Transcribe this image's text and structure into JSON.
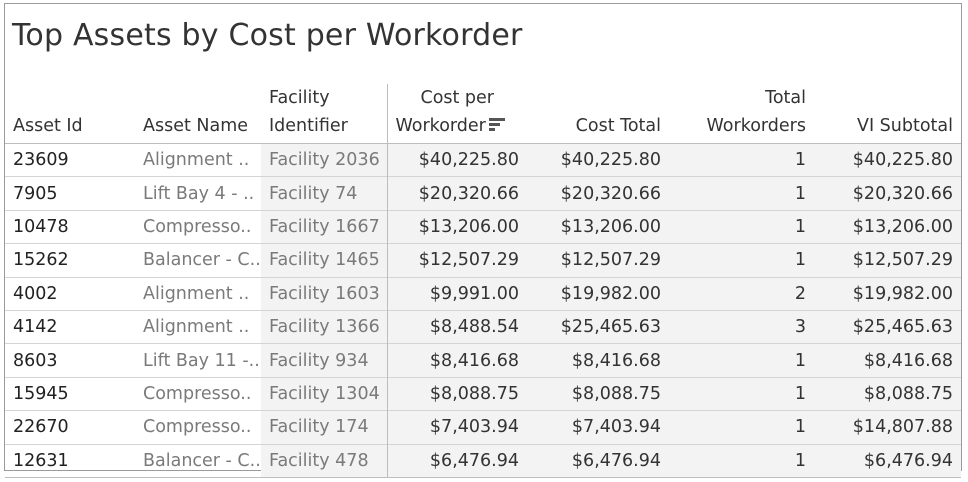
{
  "title": "Top Assets by Cost per Workorder",
  "chart_data": {
    "type": "table",
    "title": "Top Assets by Cost per Workorder",
    "columns": [
      {
        "key": "asset_id",
        "label_lines": [
          "",
          "Asset Id"
        ]
      },
      {
        "key": "asset_name",
        "label_lines": [
          "",
          "Asset Name"
        ]
      },
      {
        "key": "facility",
        "label_lines": [
          "Facility",
          "Identifier"
        ]
      },
      {
        "key": "cost_per_wo",
        "label_lines": [
          "Cost per",
          "Workorder"
        ]
      },
      {
        "key": "cost_total",
        "label_lines": [
          "",
          "Cost Total"
        ]
      },
      {
        "key": "total_wo",
        "label_lines": [
          "Total",
          "Workorders"
        ]
      },
      {
        "key": "vi_subtotal",
        "label_lines": [
          "",
          "VI Subtotal"
        ]
      }
    ],
    "sort": {
      "column": "cost_per_wo",
      "direction": "descending",
      "icon": "sort-descending-icon"
    },
    "rows": [
      {
        "asset_id": "23609",
        "asset_name": "Alignment ..",
        "facility": "Facility 2036",
        "cost_per_wo": "$40,225.80",
        "cost_total": "$40,225.80",
        "total_wo": "1",
        "vi_subtotal": "$40,225.80"
      },
      {
        "asset_id": "7905",
        "asset_name": "Lift Bay 4 - ..",
        "facility": "Facility 74",
        "cost_per_wo": "$20,320.66",
        "cost_total": "$20,320.66",
        "total_wo": "1",
        "vi_subtotal": "$20,320.66"
      },
      {
        "asset_id": "10478",
        "asset_name": "Compresso..",
        "facility": "Facility 1667",
        "cost_per_wo": "$13,206.00",
        "cost_total": "$13,206.00",
        "total_wo": "1",
        "vi_subtotal": "$13,206.00"
      },
      {
        "asset_id": "15262",
        "asset_name": "Balancer - C..",
        "facility": "Facility 1465",
        "cost_per_wo": "$12,507.29",
        "cost_total": "$12,507.29",
        "total_wo": "1",
        "vi_subtotal": "$12,507.29"
      },
      {
        "asset_id": "4002",
        "asset_name": "Alignment ..",
        "facility": "Facility 1603",
        "cost_per_wo": "$9,991.00",
        "cost_total": "$19,982.00",
        "total_wo": "2",
        "vi_subtotal": "$19,982.00"
      },
      {
        "asset_id": "4142",
        "asset_name": "Alignment ..",
        "facility": "Facility 1366",
        "cost_per_wo": "$8,488.54",
        "cost_total": "$25,465.63",
        "total_wo": "3",
        "vi_subtotal": "$25,465.63"
      },
      {
        "asset_id": "8603",
        "asset_name": "Lift Bay 11 -..",
        "facility": "Facility 934",
        "cost_per_wo": "$8,416.68",
        "cost_total": "$8,416.68",
        "total_wo": "1",
        "vi_subtotal": "$8,416.68"
      },
      {
        "asset_id": "15945",
        "asset_name": "Compresso..",
        "facility": "Facility 1304",
        "cost_per_wo": "$8,088.75",
        "cost_total": "$8,088.75",
        "total_wo": "1",
        "vi_subtotal": "$8,088.75"
      },
      {
        "asset_id": "22670",
        "asset_name": "Compresso..",
        "facility": "Facility 174",
        "cost_per_wo": "$7,403.94",
        "cost_total": "$7,403.94",
        "total_wo": "1",
        "vi_subtotal": "$14,807.88"
      },
      {
        "asset_id": "12631",
        "asset_name": "Balancer - C..",
        "facility": "Facility 478",
        "cost_per_wo": "$6,476.94",
        "cost_total": "$6,476.94",
        "total_wo": "1",
        "vi_subtotal": "$6,476.94"
      }
    ]
  }
}
